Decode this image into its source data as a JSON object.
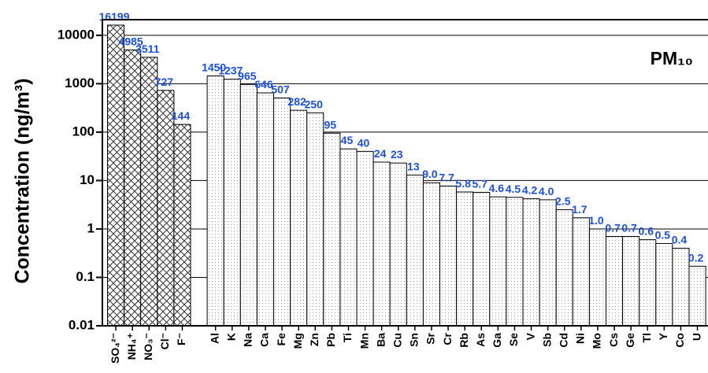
{
  "chart_data": {
    "type": "bar",
    "y_label": "Concentration (ng/m³)",
    "annotation": "PM₁₀",
    "log_scale": true,
    "grid": true,
    "categories": [
      "SO₄²⁻",
      "NH₄⁺",
      "NO₃⁻",
      "Cl⁻",
      "F⁻",
      null,
      "Al",
      "K",
      "Na",
      "Ca",
      "Fe",
      "Mg",
      "Zn",
      "Pb",
      "Ti",
      "Mn",
      "Ba",
      "Cu",
      "Sn",
      "Sr",
      "Cr",
      "Rb",
      "As",
      "Ga",
      "Se",
      "V",
      "Sb",
      "Cd",
      "Ni",
      "Mo",
      "Cs",
      "Ge",
      "Tl",
      "Y",
      "Co",
      "U"
    ],
    "values": [
      16199,
      4985,
      3511,
      727,
      144,
      null,
      1450,
      1237,
      965,
      646,
      507,
      282,
      250,
      95,
      45,
      40,
      24,
      23,
      13,
      9.0,
      7.7,
      5.8,
      5.7,
      4.6,
      4.5,
      4.2,
      4.0,
      2.5,
      1.7,
      1.0,
      0.7,
      0.7,
      0.6,
      0.5,
      0.4,
      0.17
    ],
    "value_labels": [
      "16199",
      "4985",
      "3511",
      "727",
      "144",
      null,
      "1450",
      "1237",
      "965",
      "646",
      "507",
      "282",
      "250",
      "95",
      "45",
      "40",
      "24",
      "23",
      "13",
      "9.0",
      "7.7",
      "5.8",
      "5.7",
      "4.6",
      "4.5",
      "4.2",
      "4.0",
      "2.5",
      "1.7",
      "1.0",
      "0.7",
      "0.7",
      "0.6",
      "0.5",
      "0.4",
      "0.2"
    ],
    "fills": [
      "cross",
      "cross",
      "cross",
      "cross",
      "cross",
      null,
      "dots",
      "dots",
      "dots",
      "dots",
      "dots",
      "dots",
      "dots",
      "dots",
      "dots",
      "dots",
      "dots",
      "dots",
      "dots",
      "dots",
      "dots",
      "dots",
      "dots",
      "dots",
      "dots",
      "dots",
      "dots",
      "dots",
      "dots",
      "dots",
      "dots",
      "dots",
      "dots",
      "dots",
      "dots",
      "dots"
    ],
    "label_color": "#1a4fe6",
    "ylim": [
      0.01,
      21000
    ],
    "yticks": [
      0.01,
      0.1,
      1,
      10,
      100,
      1000,
      10000
    ]
  }
}
